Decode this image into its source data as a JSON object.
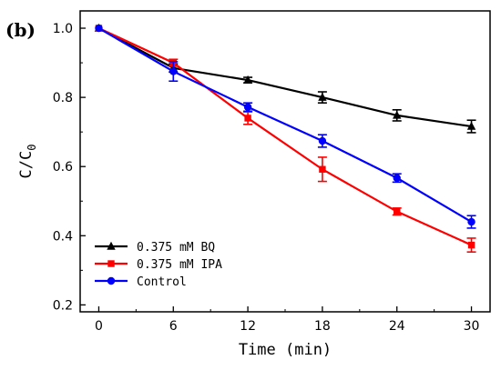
{
  "panel_label": "(b)",
  "chart_data": {
    "type": "line",
    "title": "",
    "xlabel": "Time (min)",
    "ylabel_main": "C/C",
    "ylabel_sub": "0",
    "x": [
      0,
      6,
      12,
      18,
      24,
      30
    ],
    "xlim": [
      -1.5,
      31.5
    ],
    "ylim": [
      0.18,
      1.05
    ],
    "xticks": [
      0,
      6,
      12,
      18,
      24,
      30
    ],
    "yticks": [
      0.2,
      0.4,
      0.6,
      0.8,
      1.0
    ],
    "ytick_labels": [
      "0.2",
      "0.4",
      "0.6",
      "0.8",
      "1.0"
    ],
    "legend_position": "bottom-left",
    "grid": false,
    "series": [
      {
        "name": "0.375 mM BQ",
        "color": "#000000",
        "marker": "triangle",
        "values": [
          1.0,
          0.885,
          0.85,
          0.8,
          0.748,
          0.716
        ],
        "errors": [
          0.0,
          0.012,
          0.008,
          0.016,
          0.016,
          0.018
        ]
      },
      {
        "name": "0.375 mM IPA",
        "color": "#ff0000",
        "marker": "square",
        "values": [
          1.0,
          0.9,
          0.74,
          0.592,
          0.47,
          0.373
        ],
        "errors": [
          0.0,
          0.01,
          0.018,
          0.035,
          0.01,
          0.02
        ]
      },
      {
        "name": "Control",
        "color": "#0000ff",
        "marker": "circle",
        "values": [
          1.0,
          0.875,
          0.772,
          0.674,
          0.567,
          0.44
        ],
        "errors": [
          0.0,
          0.028,
          0.012,
          0.018,
          0.012,
          0.018
        ]
      }
    ]
  }
}
